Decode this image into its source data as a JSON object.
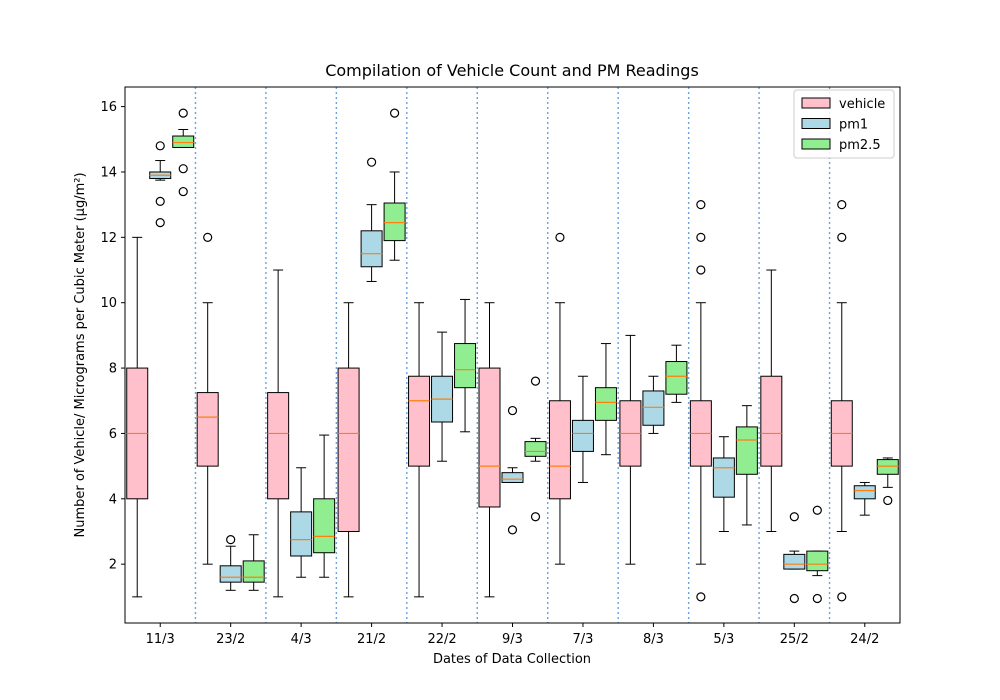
{
  "chart_data": {
    "type": "box",
    "title": "Compilation of Vehicle Count and PM Readings",
    "xlabel": "Dates of Data Collection",
    "ylabel": "Number of Vehicle/ Micrograms per Cubic Meter (µg/m²)",
    "ylim": [
      0.2,
      16.6
    ],
    "yticks": [
      2,
      4,
      6,
      8,
      10,
      12,
      14,
      16
    ],
    "categories": [
      "11/3",
      "23/2",
      "4/3",
      "21/2",
      "22/2",
      "9/3",
      "7/3",
      "8/3",
      "5/3",
      "25/2",
      "24/2"
    ],
    "series": [
      {
        "name": "vehicle",
        "color": "#ffc0cb",
        "boxes": [
          {
            "whislo": 1,
            "q1": 4,
            "med": 6,
            "q3": 8,
            "whishi": 12,
            "fliers": []
          },
          {
            "whislo": 2,
            "q1": 5,
            "med": 6.5,
            "q3": 7.25,
            "whishi": 10,
            "fliers": [
              12
            ]
          },
          {
            "whislo": 1,
            "q1": 4,
            "med": 6,
            "q3": 7.25,
            "whishi": 11,
            "fliers": []
          },
          {
            "whislo": 1,
            "q1": 3,
            "med": 6,
            "q3": 8,
            "whishi": 10,
            "fliers": []
          },
          {
            "whislo": 1,
            "q1": 5,
            "med": 7,
            "q3": 7.75,
            "whishi": 10,
            "fliers": []
          },
          {
            "whislo": 1,
            "q1": 3.75,
            "med": 5,
            "q3": 8,
            "whishi": 10,
            "fliers": []
          },
          {
            "whislo": 2,
            "q1": 4,
            "med": 5,
            "q3": 7,
            "whishi": 10,
            "fliers": [
              12
            ]
          },
          {
            "whislo": 2,
            "q1": 5,
            "med": 6,
            "q3": 7,
            "whishi": 9,
            "fliers": []
          },
          {
            "whislo": 2,
            "q1": 5,
            "med": 6,
            "q3": 7,
            "whishi": 10,
            "fliers": [
              1,
              11,
              12,
              13
            ]
          },
          {
            "whislo": 3,
            "q1": 5,
            "med": 6,
            "q3": 7.75,
            "whishi": 11,
            "fliers": []
          },
          {
            "whislo": 3,
            "q1": 5,
            "med": 6,
            "q3": 7,
            "whishi": 10,
            "fliers": [
              1,
              12,
              13
            ]
          }
        ]
      },
      {
        "name": "pm1",
        "color": "#add8e6",
        "boxes": [
          {
            "whislo": 13.75,
            "q1": 13.8,
            "med": 13.9,
            "q3": 14.0,
            "whishi": 14.35,
            "fliers": [
              12.45,
              13.1,
              14.8
            ]
          },
          {
            "whislo": 1.2,
            "q1": 1.45,
            "med": 1.6,
            "q3": 1.95,
            "whishi": 2.55,
            "fliers": [
              2.75
            ]
          },
          {
            "whislo": 1.6,
            "q1": 2.25,
            "med": 2.75,
            "q3": 3.6,
            "whishi": 4.95,
            "fliers": []
          },
          {
            "whislo": 10.65,
            "q1": 11.1,
            "med": 11.5,
            "q3": 12.2,
            "whishi": 13.0,
            "fliers": [
              14.3
            ]
          },
          {
            "whislo": 5.15,
            "q1": 6.35,
            "med": 7.05,
            "q3": 7.75,
            "whishi": 9.1,
            "fliers": []
          },
          {
            "whislo": 4.5,
            "q1": 4.5,
            "med": 4.6,
            "q3": 4.8,
            "whishi": 4.95,
            "fliers": [
              3.05,
              6.7
            ]
          },
          {
            "whislo": 4.5,
            "q1": 5.45,
            "med": 6.0,
            "q3": 6.4,
            "whishi": 7.75,
            "fliers": []
          },
          {
            "whislo": 6.0,
            "q1": 6.25,
            "med": 6.8,
            "q3": 7.3,
            "whishi": 7.75,
            "fliers": []
          },
          {
            "whislo": 3.0,
            "q1": 4.05,
            "med": 4.95,
            "q3": 5.25,
            "whishi": 5.9,
            "fliers": []
          },
          {
            "whislo": 1.85,
            "q1": 1.85,
            "med": 2.0,
            "q3": 2.3,
            "whishi": 2.4,
            "fliers": [
              0.95,
              3.45
            ]
          },
          {
            "whislo": 3.5,
            "q1": 4.0,
            "med": 4.25,
            "q3": 4.4,
            "whishi": 4.5,
            "fliers": []
          }
        ]
      },
      {
        "name": "pm2.5",
        "color": "#90ee90",
        "boxes": [
          {
            "whislo": 14.75,
            "q1": 14.75,
            "med": 14.9,
            "q3": 15.1,
            "whishi": 15.3,
            "fliers": [
              13.4,
              14.1,
              15.8
            ]
          },
          {
            "whislo": 1.2,
            "q1": 1.45,
            "med": 1.6,
            "q3": 2.1,
            "whishi": 2.9,
            "fliers": []
          },
          {
            "whislo": 1.6,
            "q1": 2.35,
            "med": 2.85,
            "q3": 4.0,
            "whishi": 5.95,
            "fliers": []
          },
          {
            "whislo": 11.3,
            "q1": 11.9,
            "med": 12.45,
            "q3": 13.05,
            "whishi": 14.0,
            "fliers": [
              15.8
            ]
          },
          {
            "whislo": 6.05,
            "q1": 7.4,
            "med": 7.95,
            "q3": 8.75,
            "whishi": 10.1,
            "fliers": []
          },
          {
            "whislo": 5.15,
            "q1": 5.3,
            "med": 5.45,
            "q3": 5.75,
            "whishi": 5.85,
            "fliers": [
              3.45,
              7.6
            ]
          },
          {
            "whislo": 5.35,
            "q1": 6.4,
            "med": 6.95,
            "q3": 7.4,
            "whishi": 8.75,
            "fliers": []
          },
          {
            "whislo": 6.95,
            "q1": 7.2,
            "med": 7.75,
            "q3": 8.2,
            "whishi": 8.7,
            "fliers": []
          },
          {
            "whislo": 3.2,
            "q1": 4.75,
            "med": 5.8,
            "q3": 6.2,
            "whishi": 6.85,
            "fliers": []
          },
          {
            "whislo": 1.65,
            "q1": 1.8,
            "med": 2.0,
            "q3": 2.4,
            "whishi": 2.4,
            "fliers": [
              0.95,
              3.65
            ]
          },
          {
            "whislo": 4.35,
            "q1": 4.75,
            "med": 5.0,
            "q3": 5.2,
            "whishi": 5.25,
            "fliers": [
              3.95
            ]
          }
        ]
      }
    ],
    "legend": {
      "placement": "top-right",
      "entries": [
        "vehicle",
        "pm1",
        "pm2.5"
      ]
    },
    "separators": "dotted vertical lines between date groups"
  }
}
